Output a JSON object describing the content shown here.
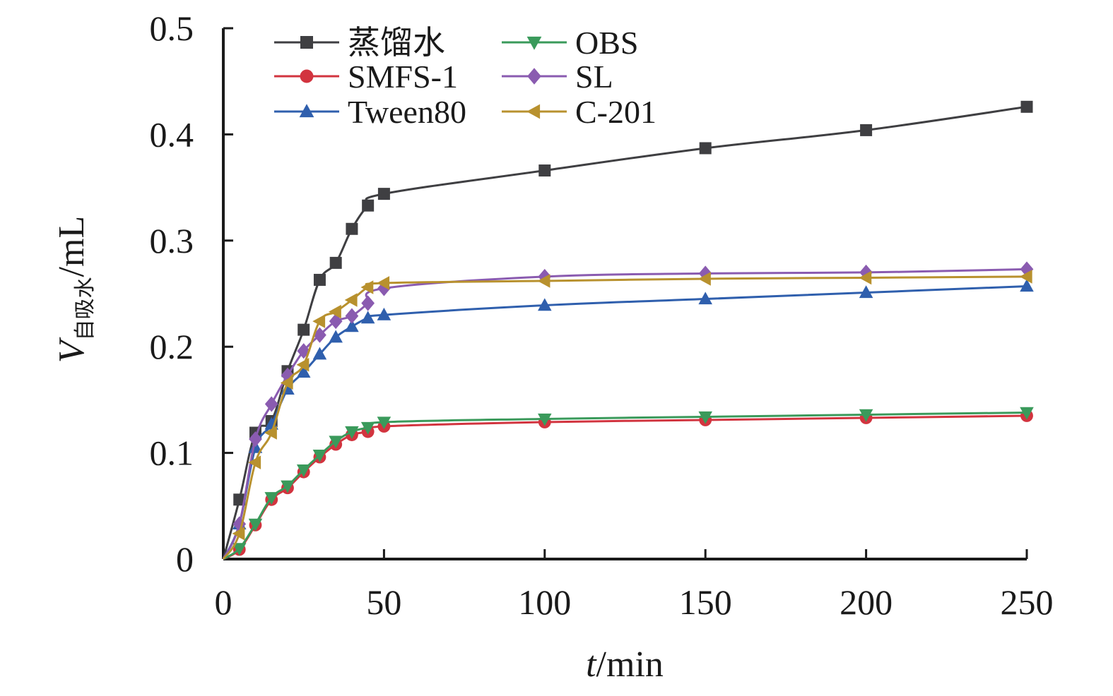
{
  "chart_data": {
    "type": "line",
    "title": "",
    "xlabel": {
      "italic": "t",
      "rest": "/min"
    },
    "ylabel": {
      "italic": "V",
      "subscript": "自吸水",
      "rest": "/mL"
    },
    "xlim": [
      0,
      250
    ],
    "ylim": [
      0,
      0.5
    ],
    "xticks": [
      0,
      50,
      100,
      150,
      200,
      250
    ],
    "yticks": [
      0,
      0.1,
      0.2,
      0.3,
      0.4,
      0.5
    ],
    "xtick_labels": [
      "0",
      "50",
      "100",
      "150",
      "200",
      "250"
    ],
    "ytick_labels": [
      "0",
      "0.1",
      "0.2",
      "0.3",
      "0.4",
      "0.5"
    ],
    "grid": false,
    "legend_position": "top-left",
    "series": [
      {
        "name": "蒸馏水",
        "color": "#3f3f42",
        "marker": "square",
        "x": [
          0,
          5,
          10,
          15,
          20,
          25,
          30,
          35,
          40,
          45,
          50,
          100,
          150,
          200,
          250
        ],
        "y": [
          0,
          0.056,
          0.119,
          0.13,
          0.177,
          0.216,
          0.263,
          0.279,
          0.311,
          0.333,
          0.344,
          0.366,
          0.387,
          0.404,
          0.426
        ]
      },
      {
        "name": "SMFS-1",
        "color": "#d2343f",
        "marker": "circle",
        "x": [
          0,
          5,
          10,
          15,
          20,
          25,
          30,
          35,
          40,
          45,
          50,
          100,
          150,
          200,
          250
        ],
        "y": [
          0,
          0.009,
          0.032,
          0.056,
          0.067,
          0.082,
          0.096,
          0.108,
          0.117,
          0.12,
          0.125,
          0.129,
          0.131,
          0.133,
          0.135
        ]
      },
      {
        "name": "Tween80",
        "color": "#2f5fad",
        "marker": "triangle-up",
        "x": [
          0,
          5,
          10,
          15,
          20,
          25,
          30,
          35,
          40,
          45,
          50,
          100,
          150,
          200,
          250
        ],
        "y": [
          0,
          0.033,
          0.105,
          0.127,
          0.16,
          0.176,
          0.193,
          0.209,
          0.219,
          0.227,
          0.23,
          0.239,
          0.245,
          0.251,
          0.257
        ]
      },
      {
        "name": "OBS",
        "color": "#3a9a5b",
        "marker": "triangle-down",
        "x": [
          0,
          5,
          10,
          15,
          20,
          25,
          30,
          35,
          40,
          45,
          50,
          100,
          150,
          200,
          250
        ],
        "y": [
          0,
          0.01,
          0.033,
          0.058,
          0.069,
          0.084,
          0.098,
          0.111,
          0.12,
          0.124,
          0.129,
          0.132,
          0.134,
          0.136,
          0.138
        ]
      },
      {
        "name": "SL",
        "color": "#8a5bb0",
        "marker": "diamond",
        "x": [
          0,
          5,
          10,
          15,
          20,
          25,
          30,
          35,
          40,
          45,
          50,
          100,
          150,
          200,
          250
        ],
        "y": [
          0,
          0.033,
          0.113,
          0.146,
          0.173,
          0.196,
          0.211,
          0.224,
          0.229,
          0.241,
          0.255,
          0.266,
          0.269,
          0.27,
          0.273
        ]
      },
      {
        "name": "C-201",
        "color": "#b8912e",
        "marker": "triangle-left",
        "x": [
          0,
          5,
          10,
          15,
          20,
          25,
          30,
          35,
          40,
          45,
          50,
          100,
          150,
          200,
          250
        ],
        "y": [
          0,
          0.024,
          0.091,
          0.119,
          0.166,
          0.183,
          0.224,
          0.233,
          0.244,
          0.256,
          0.26,
          0.262,
          0.264,
          0.265,
          0.266
        ]
      }
    ]
  }
}
